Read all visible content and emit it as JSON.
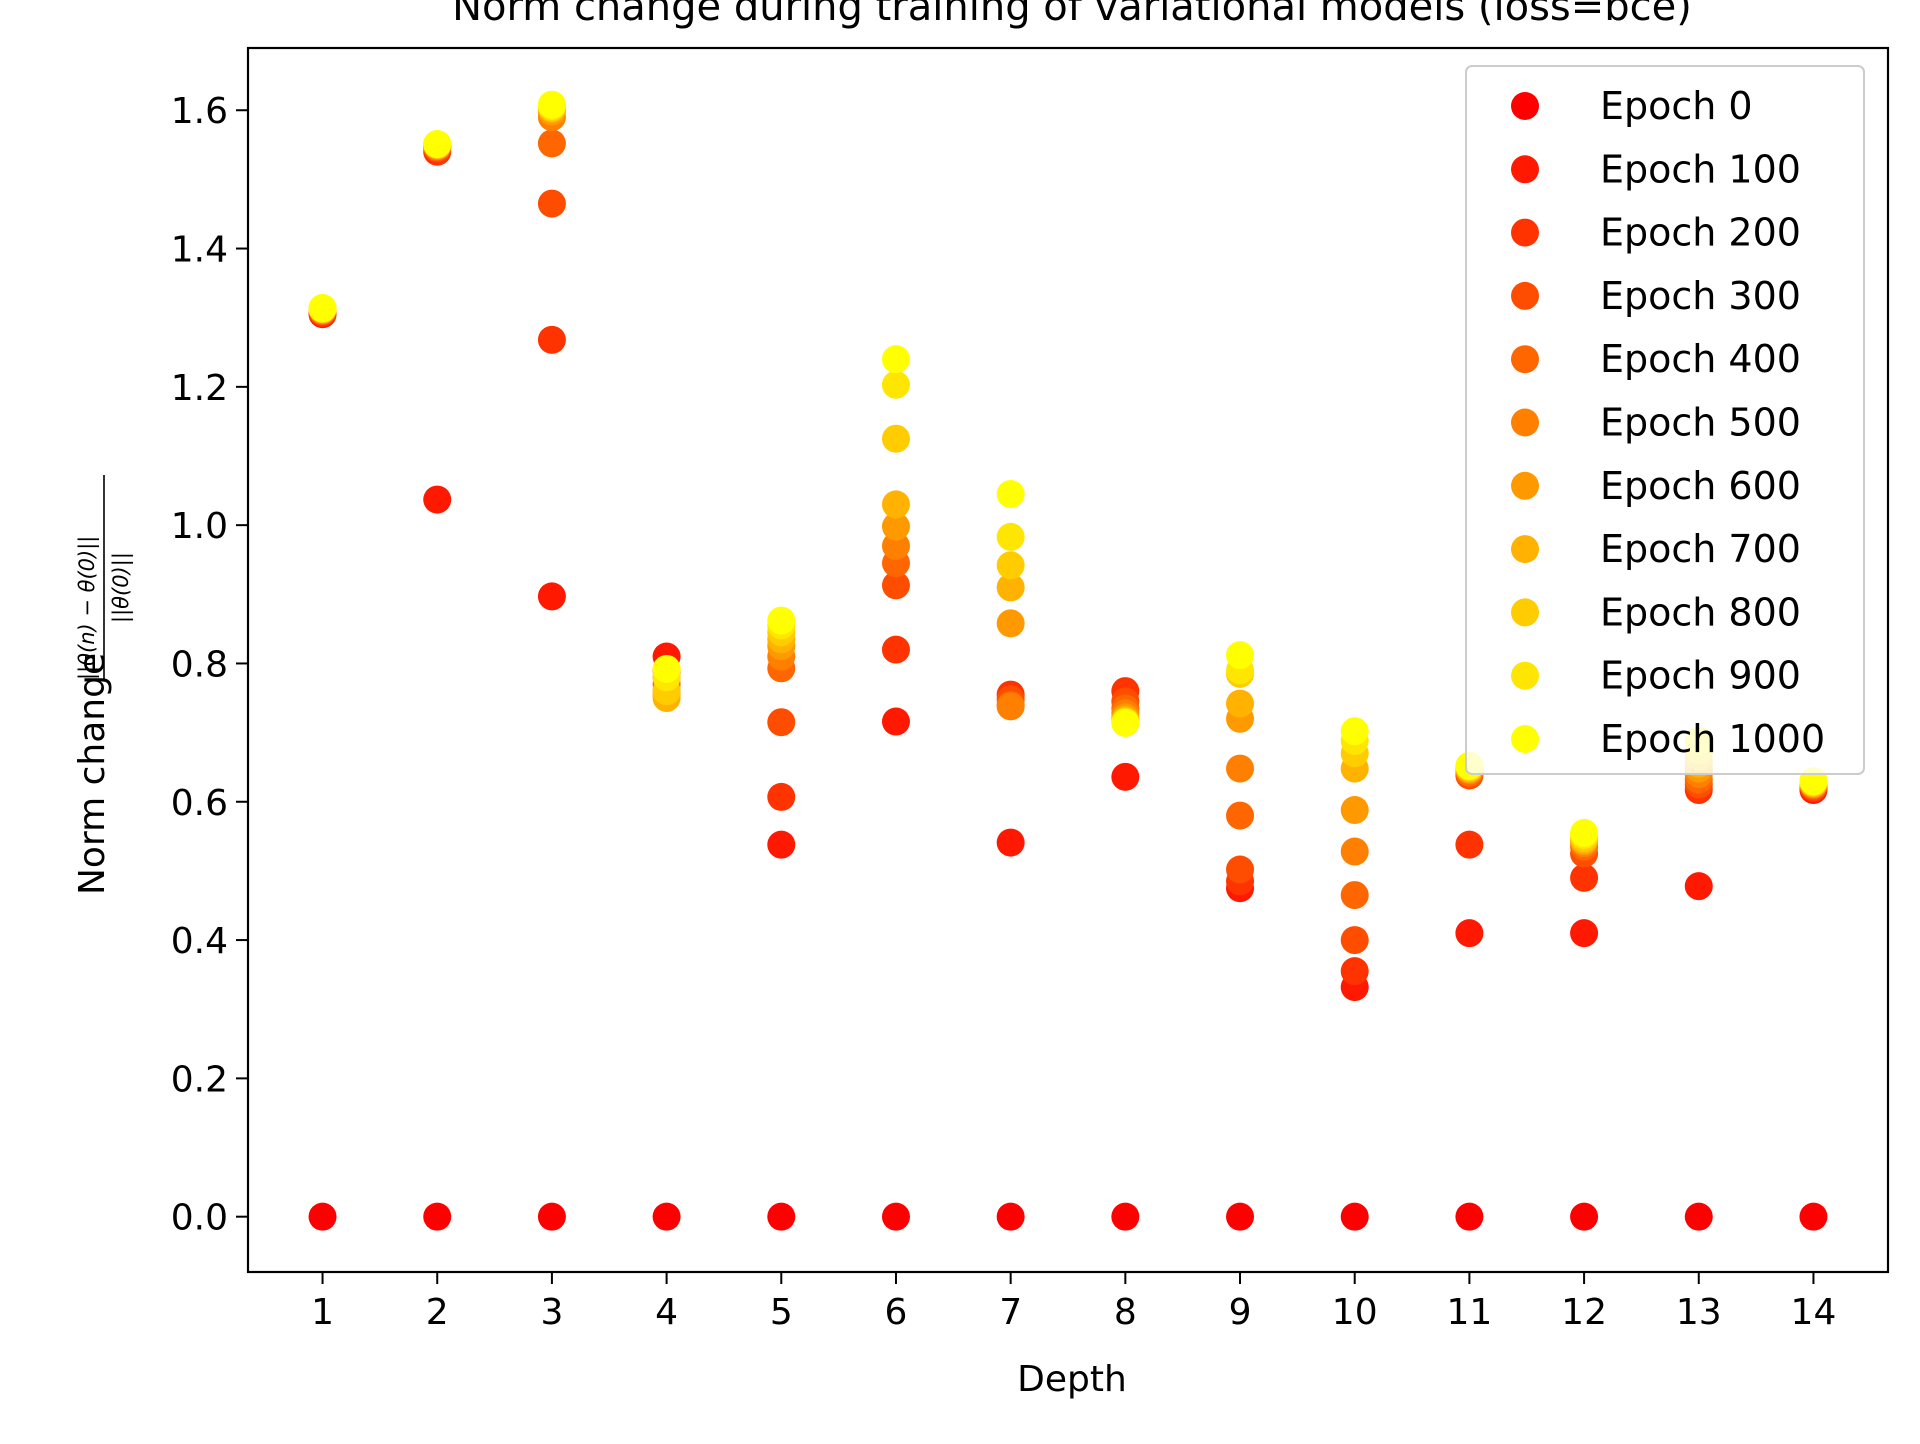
{
  "chart_data": {
    "type": "scatter",
    "title": "Norm change during training of variational models (loss=bce)",
    "xlabel": "Depth",
    "ylabel_prefix": "Norm change",
    "ylabel_numerator": "||θ(n) − θ(0)||",
    "ylabel_denominator": "||θ(0)||",
    "xlim": [
      0.35,
      14.65
    ],
    "ylim": [
      -0.08,
      1.69
    ],
    "x_ticks": [
      1,
      2,
      3,
      4,
      5,
      6,
      7,
      8,
      9,
      10,
      11,
      12,
      13,
      14
    ],
    "x_tick_labels": [
      "1",
      "2",
      "3",
      "4",
      "5",
      "6",
      "7",
      "8",
      "9",
      "10",
      "11",
      "12",
      "13",
      "14"
    ],
    "y_ticks": [
      0.0,
      0.2,
      0.4,
      0.6,
      0.8,
      1.0,
      1.2,
      1.4,
      1.6
    ],
    "y_tick_labels": [
      "0.0",
      "0.2",
      "0.4",
      "0.6",
      "0.8",
      "1.0",
      "1.2",
      "1.4",
      "1.6"
    ],
    "grid": false,
    "legend_position": "top-right",
    "x": [
      1,
      2,
      3,
      4,
      5,
      6,
      7,
      8,
      9,
      10,
      11,
      12,
      13,
      14
    ],
    "series": [
      {
        "name": "Epoch 0",
        "color": "#ff0000",
        "values": [
          0,
          0,
          0,
          0,
          0,
          0,
          0,
          0,
          0,
          0,
          0,
          0,
          0,
          0
        ]
      },
      {
        "name": "Epoch 100",
        "color": "#ff1900",
        "values": [
          1.305,
          1.037,
          0.897,
          0.81,
          0.538,
          0.716,
          0.541,
          0.636,
          0.475,
          0.332,
          0.41,
          0.41,
          0.478,
          0.617
        ]
      },
      {
        "name": "Epoch 200",
        "color": "#ff3300",
        "values": [
          1.307,
          1.54,
          1.268,
          0.79,
          0.607,
          0.82,
          0.755,
          0.76,
          0.485,
          0.355,
          0.538,
          0.49,
          0.617,
          0.62
        ]
      },
      {
        "name": "Epoch 300",
        "color": "#ff4d00",
        "values": [
          1.309,
          1.545,
          1.465,
          0.78,
          0.715,
          0.913,
          0.748,
          0.745,
          0.502,
          0.4,
          0.638,
          0.525,
          0.625,
          0.622
        ]
      },
      {
        "name": "Epoch 400",
        "color": "#ff6600",
        "values": [
          1.31,
          1.547,
          1.552,
          0.77,
          0.793,
          0.945,
          0.74,
          0.735,
          0.58,
          0.465,
          0.642,
          0.535,
          0.632,
          0.624
        ]
      },
      {
        "name": "Epoch 500",
        "color": "#ff8000",
        "values": [
          1.311,
          1.548,
          1.59,
          0.76,
          0.81,
          0.97,
          0.738,
          0.728,
          0.648,
          0.528,
          0.645,
          0.54,
          0.64,
          0.625
        ]
      },
      {
        "name": "Epoch 600",
        "color": "#ff9900",
        "values": [
          1.312,
          1.549,
          1.598,
          0.755,
          0.825,
          0.998,
          0.858,
          0.722,
          0.72,
          0.588,
          0.647,
          0.543,
          0.648,
          0.626
        ]
      },
      {
        "name": "Epoch 700",
        "color": "#ffb300",
        "values": [
          1.312,
          1.55,
          1.602,
          0.75,
          0.835,
          1.03,
          0.91,
          0.718,
          0.742,
          0.648,
          0.648,
          0.545,
          0.655,
          0.627
        ]
      },
      {
        "name": "Epoch 800",
        "color": "#ffcc00",
        "values": [
          1.313,
          1.55,
          1.604,
          0.76,
          0.845,
          1.125,
          0.942,
          0.716,
          0.785,
          0.67,
          0.65,
          0.548,
          0.665,
          0.628
        ]
      },
      {
        "name": "Epoch 900",
        "color": "#ffe600",
        "values": [
          1.313,
          1.551,
          1.606,
          0.78,
          0.855,
          1.203,
          0.983,
          0.715,
          0.79,
          0.688,
          0.651,
          0.552,
          0.675,
          0.629
        ]
      },
      {
        "name": "Epoch 1000",
        "color": "#ffff00",
        "values": [
          1.314,
          1.551,
          1.608,
          0.792,
          0.862,
          1.24,
          1.045,
          0.714,
          0.812,
          0.702,
          0.652,
          0.555,
          0.688,
          0.63
        ]
      }
    ]
  }
}
